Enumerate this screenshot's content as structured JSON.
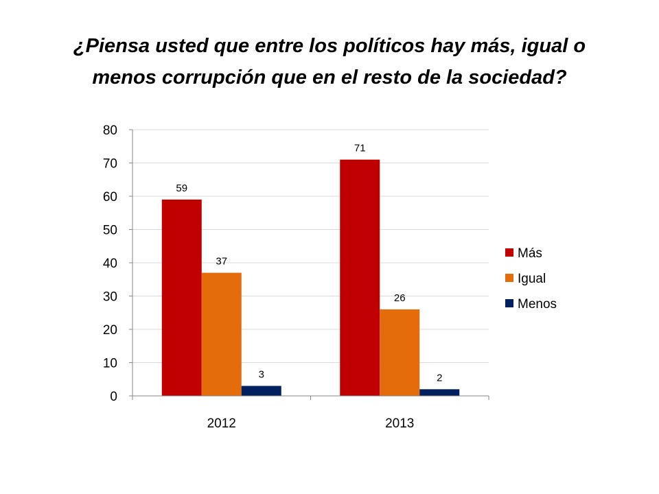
{
  "chart_data": {
    "type": "bar",
    "title_line1": "¿Piensa usted que entre los políticos hay más, igual o",
    "title_line2": "menos corrupción que en el resto de la sociedad?",
    "categories": [
      "2012",
      "2013"
    ],
    "series": [
      {
        "name": "Más",
        "values": [
          59,
          71
        ],
        "color": "#C00000"
      },
      {
        "name": "Igual",
        "values": [
          37,
          26
        ],
        "color": "#E46C0A"
      },
      {
        "name": "Menos",
        "values": [
          3,
          2
        ],
        "color": "#002060"
      }
    ],
    "ylim": [
      0,
      80
    ],
    "yticks": [
      0,
      10,
      20,
      30,
      40,
      50,
      60,
      70,
      80
    ],
    "grid": true,
    "legend_position": "right",
    "data_labels": true
  }
}
